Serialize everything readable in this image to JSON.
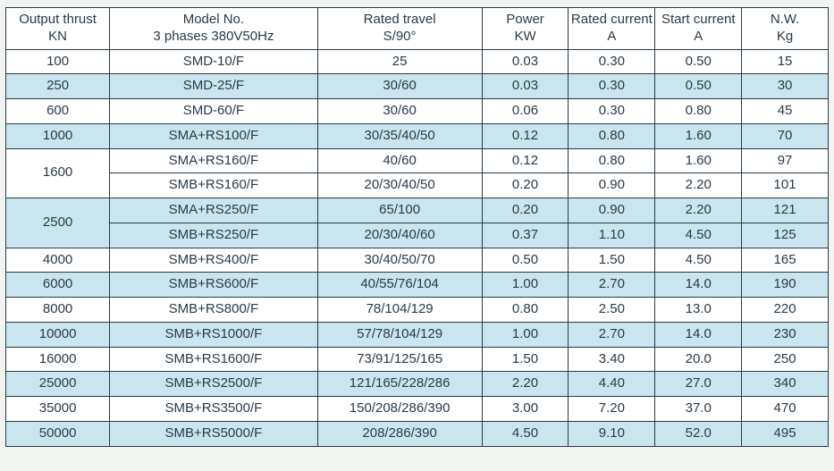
{
  "table": {
    "background_color": "#ffffff",
    "band_color": "#c9e6ef",
    "border_color": "#2a3a47",
    "text_color": "#2a3a47",
    "font_family": "Arial",
    "font_size_pt": 11,
    "col_widths_pct": [
      12,
      24,
      19,
      10,
      10,
      10,
      10
    ],
    "columns": [
      {
        "top": "Output thrust",
        "bottom": "KN"
      },
      {
        "top": "Model No.",
        "bottom": "3 phases 380V50Hz"
      },
      {
        "top": "Rated travel",
        "bottom": "S/90°"
      },
      {
        "top": "Power",
        "bottom": "KW"
      },
      {
        "top": "Rated current",
        "bottom": "A"
      },
      {
        "top": "Start current",
        "bottom": "A"
      },
      {
        "top": "N.W.",
        "bottom": "Kg"
      }
    ],
    "rows": [
      {
        "band": false,
        "thrust": "100",
        "thrust_rowspan": 1,
        "cells": [
          "SMD-10/F",
          "25",
          "0.03",
          "0.30",
          "0.50",
          "15"
        ]
      },
      {
        "band": true,
        "thrust": "250",
        "thrust_rowspan": 1,
        "cells": [
          "SMD-25/F",
          "30/60",
          "0.03",
          "0.30",
          "0.50",
          "30"
        ]
      },
      {
        "band": false,
        "thrust": "600",
        "thrust_rowspan": 1,
        "cells": [
          "SMD-60/F",
          "30/60",
          "0.06",
          "0.30",
          "0.80",
          "45"
        ]
      },
      {
        "band": true,
        "thrust": "1000",
        "thrust_rowspan": 1,
        "cells": [
          "SMA+RS100/F",
          "30/35/40/50",
          "0.12",
          "0.80",
          "1.60",
          "70"
        ]
      },
      {
        "band": false,
        "thrust": "1600",
        "thrust_rowspan": 2,
        "cells": [
          "SMA+RS160/F",
          "40/60",
          "0.12",
          "0.80",
          "1.60",
          "97"
        ]
      },
      {
        "band": false,
        "thrust": null,
        "thrust_rowspan": 0,
        "cells": [
          "SMB+RS160/F",
          "20/30/40/50",
          "0.20",
          "0.90",
          "2.20",
          "101"
        ]
      },
      {
        "band": true,
        "thrust": "2500",
        "thrust_rowspan": 2,
        "cells": [
          "SMA+RS250/F",
          "65/100",
          "0.20",
          "0.90",
          "2.20",
          "121"
        ]
      },
      {
        "band": true,
        "thrust": null,
        "thrust_rowspan": 0,
        "cells": [
          "SMB+RS250/F",
          "20/30/40/60",
          "0.37",
          "1.10",
          "4.50",
          "125"
        ]
      },
      {
        "band": false,
        "thrust": "4000",
        "thrust_rowspan": 1,
        "cells": [
          "SMB+RS400/F",
          "30/40/50/70",
          "0.50",
          "1.50",
          "4.50",
          "165"
        ]
      },
      {
        "band": true,
        "thrust": "6000",
        "thrust_rowspan": 1,
        "cells": [
          "SMB+RS600/F",
          "40/55/76/104",
          "1.00",
          "2.70",
          "14.0",
          "190"
        ]
      },
      {
        "band": false,
        "thrust": "8000",
        "thrust_rowspan": 1,
        "cells": [
          "SMB+RS800/F",
          "78/104/129",
          "0.80",
          "2.50",
          "13.0",
          "220"
        ]
      },
      {
        "band": true,
        "thrust": "10000",
        "thrust_rowspan": 1,
        "cells": [
          "SMB+RS1000/F",
          "57/78/104/129",
          "1.00",
          "2.70",
          "14.0",
          "230"
        ]
      },
      {
        "band": false,
        "thrust": "16000",
        "thrust_rowspan": 1,
        "cells": [
          "SMB+RS1600/F",
          "73/91/125/165",
          "1.50",
          "3.40",
          "20.0",
          "250"
        ]
      },
      {
        "band": true,
        "thrust": "25000",
        "thrust_rowspan": 1,
        "cells": [
          "SMB+RS2500/F",
          "121/165/228/286",
          "2.20",
          "4.40",
          "27.0",
          "340"
        ]
      },
      {
        "band": false,
        "thrust": "35000",
        "thrust_rowspan": 1,
        "cells": [
          "SMB+RS3500/F",
          "150/208/286/390",
          "3.00",
          "7.20",
          "37.0",
          "470"
        ]
      },
      {
        "band": true,
        "thrust": "50000",
        "thrust_rowspan": 1,
        "cells": [
          "SMB+RS5000/F",
          "208/286/390",
          "4.50",
          "9.10",
          "52.0",
          "495"
        ]
      }
    ]
  }
}
